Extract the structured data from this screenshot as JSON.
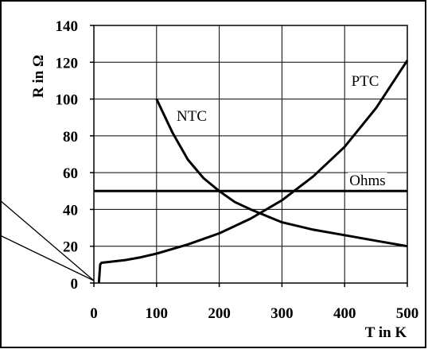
{
  "chart_data": {
    "type": "line",
    "xlabel": "T in K",
    "ylabel": "R in Ω",
    "xlim": [
      0,
      500
    ],
    "ylim": [
      0,
      140
    ],
    "x_ticks": [
      "0",
      "100",
      "200",
      "300",
      "400",
      "500"
    ],
    "y_ticks": [
      "0",
      "20",
      "40",
      "60",
      "80",
      "100",
      "120",
      "140"
    ],
    "grid": true,
    "series": [
      {
        "name": "NTC",
        "x": [
          100,
          125,
          150,
          175,
          200,
          225,
          250,
          300,
          350,
          400,
          450,
          500
        ],
        "y": [
          100,
          82,
          67,
          57,
          50,
          44,
          40,
          33,
          29,
          26,
          23,
          20
        ]
      },
      {
        "name": "PTC",
        "x": [
          8,
          10,
          12,
          25,
          50,
          75,
          100,
          150,
          200,
          250,
          300,
          350,
          400,
          450,
          500
        ],
        "y": [
          0,
          10,
          11,
          11.5,
          12.5,
          14,
          16,
          21,
          27,
          35,
          45,
          58,
          74,
          95,
          121
        ]
      },
      {
        "name": "Ohms",
        "x": [
          0,
          500
        ],
        "y": [
          50,
          50
        ]
      }
    ]
  }
}
